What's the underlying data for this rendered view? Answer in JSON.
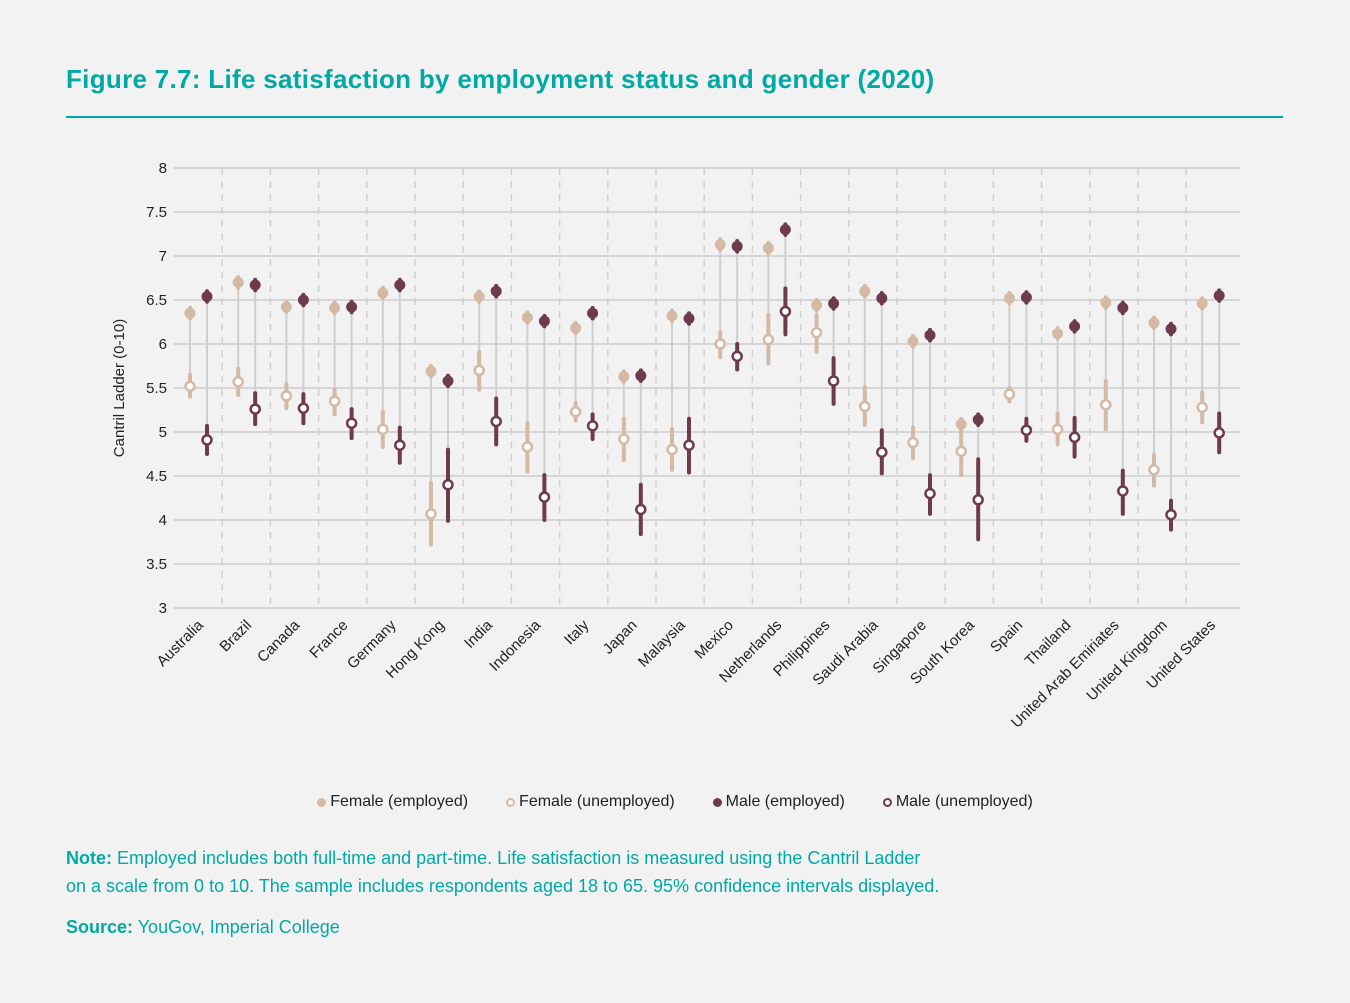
{
  "title": "Figure 7.7: Life satisfaction by employment status and gender (2020)",
  "note_label": "Note:",
  "note_line1": " Employed includes both full-time and part-time. Life satisfaction is measured using the Cantril Ladder",
  "note_line2": "on a scale from 0 to 10. The sample includes respondents aged 18 to 65. 95% confidence intervals displayed.",
  "source_label": "Source:",
  "source_text": " YouGov, Imperial College",
  "colors": {
    "female": "#d4b9a5",
    "male": "#6e3a4e",
    "accent": "#00a9a5"
  },
  "chart_data": {
    "type": "scatter",
    "title": "Figure 7.7: Life satisfaction by employment status and gender (2020)",
    "ylabel": "Cantril Ladder (0-10)",
    "ylim": [
      3,
      8
    ],
    "yticks": [
      "3",
      "3.5",
      "4",
      "4.5",
      "5",
      "5.5",
      "6",
      "6.5",
      "7",
      "7.5",
      "8"
    ],
    "grid": true,
    "legend_placement": "bottom",
    "series": [
      {
        "name": "Female (employed)",
        "color": "#d4b9a5",
        "marker": "filled"
      },
      {
        "name": "Female (unemployed)",
        "color": "#d4b9a5",
        "marker": "hollow"
      },
      {
        "name": "Male (employed)",
        "color": "#6e3a4e",
        "marker": "filled"
      },
      {
        "name": "Male (unemployed)",
        "color": "#6e3a4e",
        "marker": "hollow"
      }
    ],
    "categories": [
      "Australia",
      "Brazil",
      "Canada",
      "France",
      "Germany",
      "Hong Kong",
      "India",
      "Indonesia",
      "Italy",
      "Japan",
      "Malaysia",
      "Mexico",
      "Netherlands",
      "Philippines",
      "Saudi Arabia",
      "Singapore",
      "South Korea",
      "Spain",
      "Thailand",
      "United Arab Emiriates",
      "United Kingdom",
      "United States"
    ],
    "data": [
      {
        "fe": 6.35,
        "fu": [
          5.52,
          5.4,
          5.65
        ],
        "me": 6.54,
        "mu": [
          4.91,
          4.75,
          5.07
        ]
      },
      {
        "fe": 6.7,
        "fu": [
          5.57,
          5.42,
          5.72
        ],
        "me": 6.67,
        "mu": [
          5.26,
          5.09,
          5.44
        ]
      },
      {
        "fe": 6.42,
        "fu": [
          5.41,
          5.27,
          5.55
        ],
        "me": 6.5,
        "mu": [
          5.27,
          5.1,
          5.43
        ]
      },
      {
        "fe": 6.41,
        "fu": [
          5.35,
          5.2,
          5.48
        ],
        "me": 6.42,
        "mu": [
          5.1,
          4.93,
          5.26
        ]
      },
      {
        "fe": 6.58,
        "fu": [
          5.03,
          4.83,
          5.23
        ],
        "me": 6.67,
        "mu": [
          4.85,
          4.65,
          5.05
        ]
      },
      {
        "fe": 5.69,
        "fu": [
          4.07,
          3.72,
          4.42
        ],
        "me": 5.58,
        "mu": [
          4.4,
          3.99,
          4.8
        ]
      },
      {
        "fe": 6.54,
        "fu": [
          5.7,
          5.48,
          5.91
        ],
        "me": 6.6,
        "mu": [
          5.12,
          4.86,
          5.38
        ]
      },
      {
        "fe": 6.3,
        "fu": [
          4.83,
          4.55,
          5.1
        ],
        "me": 6.26,
        "mu": [
          4.26,
          4.0,
          4.51
        ]
      },
      {
        "fe": 6.18,
        "fu": [
          5.23,
          5.13,
          5.33
        ],
        "me": 6.35,
        "mu": [
          5.07,
          4.92,
          5.2
        ]
      },
      {
        "fe": 5.63,
        "fu": [
          4.92,
          4.68,
          5.15
        ],
        "me": 5.64,
        "mu": [
          4.12,
          3.84,
          4.4
        ]
      },
      {
        "fe": 6.32,
        "fu": [
          4.8,
          4.57,
          5.03
        ],
        "me": 6.29,
        "mu": [
          4.85,
          4.54,
          5.15
        ]
      },
      {
        "fe": 7.13,
        "fu": [
          6.0,
          5.85,
          6.13
        ],
        "me": 7.11,
        "mu": [
          5.86,
          5.71,
          6.0
        ]
      },
      {
        "fe": 7.09,
        "fu": [
          6.05,
          5.78,
          6.33
        ],
        "me": 7.3,
        "mu": [
          6.37,
          6.11,
          6.63
        ]
      },
      {
        "fe": 6.44,
        "fu": [
          6.13,
          5.91,
          6.33
        ],
        "me": 6.46,
        "mu": [
          5.58,
          5.32,
          5.84
        ]
      },
      {
        "fe": 6.6,
        "fu": [
          5.29,
          5.08,
          5.51
        ],
        "me": 6.52,
        "mu": [
          4.77,
          4.53,
          5.02
        ]
      },
      {
        "fe": 6.03,
        "fu": [
          4.88,
          4.7,
          5.05
        ],
        "me": 6.1,
        "mu": [
          4.3,
          4.07,
          4.51
        ]
      },
      {
        "fe": 5.09,
        "fu": [
          4.78,
          4.51,
          5.1
        ],
        "me": 5.14,
        "mu": [
          4.23,
          3.78,
          4.69
        ]
      },
      {
        "fe": 6.52,
        "fu": [
          5.43,
          5.35,
          5.5
        ],
        "me": 6.53,
        "mu": [
          5.02,
          4.9,
          5.15
        ]
      },
      {
        "fe": 6.12,
        "fu": [
          5.03,
          4.86,
          5.21
        ],
        "me": 6.2,
        "mu": [
          4.94,
          4.72,
          5.16
        ]
      },
      {
        "fe": 6.47,
        "fu": [
          5.31,
          5.03,
          5.58
        ],
        "me": 6.41,
        "mu": [
          4.33,
          4.07,
          4.56
        ]
      },
      {
        "fe": 6.24,
        "fu": [
          4.57,
          4.39,
          4.74
        ],
        "me": 6.17,
        "mu": [
          4.06,
          3.89,
          4.22
        ]
      },
      {
        "fe": 6.46,
        "fu": [
          5.28,
          5.11,
          5.45
        ],
        "me": 6.55,
        "mu": [
          4.99,
          4.77,
          5.21
        ]
      }
    ]
  }
}
